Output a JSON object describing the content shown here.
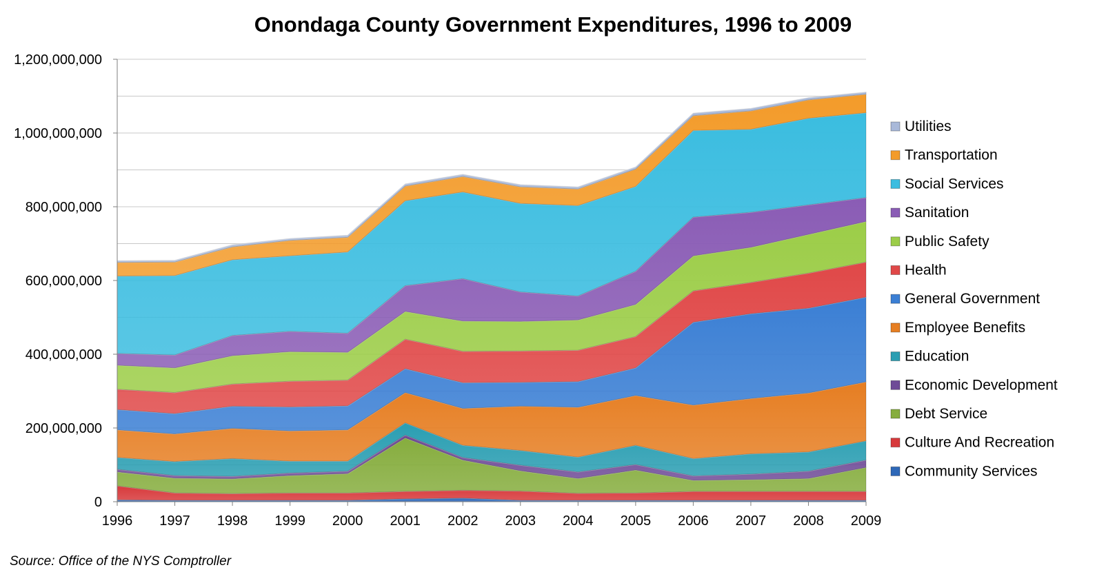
{
  "chart_data": {
    "type": "area",
    "stacked": true,
    "title": "Onondaga County Government Expenditures, 1996 to 2009",
    "source": "Source:  Office of the NYS Comptroller",
    "xlabel": "",
    "ylabel": "",
    "ylim": [
      0,
      1200000000
    ],
    "ytick_step": 200000000,
    "yticks": [
      "0",
      "200,000,000",
      "400,000,000",
      "600,000,000",
      "800,000,000",
      "1,000,000,000",
      "1,200,000,000"
    ],
    "grid": true,
    "legend_position": "right",
    "categories": [
      "1996",
      "1997",
      "1998",
      "1999",
      "2000",
      "2001",
      "2002",
      "2003",
      "2004",
      "2005",
      "2006",
      "2007",
      "2008",
      "2009"
    ],
    "series": [
      {
        "name": "Community Services",
        "color": "#2e68b8",
        "values": [
          5000000,
          4000000,
          4000000,
          4000000,
          4000000,
          8000000,
          10000000,
          4000000,
          4000000,
          4000000,
          4000000,
          4000000,
          4000000,
          4000000
        ]
      },
      {
        "name": "Culture And Recreation",
        "color": "#d7393b",
        "values": [
          38000000,
          20000000,
          18000000,
          20000000,
          20000000,
          20000000,
          21000000,
          25000000,
          19000000,
          20000000,
          24000000,
          24000000,
          24000000,
          24000000
        ]
      },
      {
        "name": "Debt Service",
        "color": "#86ad3e",
        "values": [
          38000000,
          40000000,
          40000000,
          47000000,
          52000000,
          145000000,
          82000000,
          55000000,
          40000000,
          62000000,
          30000000,
          32000000,
          35000000,
          65000000
        ]
      },
      {
        "name": "Economic Development",
        "color": "#6f4b97",
        "values": [
          7000000,
          7000000,
          7000000,
          7000000,
          7000000,
          8000000,
          7000000,
          15000000,
          18000000,
          15000000,
          12000000,
          15000000,
          20000000,
          20000000
        ]
      },
      {
        "name": "Education",
        "color": "#2a9eb2",
        "values": [
          32000000,
          38000000,
          48000000,
          32000000,
          27000000,
          33000000,
          33000000,
          40000000,
          40000000,
          52000000,
          47000000,
          55000000,
          52000000,
          52000000
        ]
      },
      {
        "name": "Employee Benefits",
        "color": "#e67e22",
        "values": [
          75000000,
          75000000,
          82000000,
          82000000,
          85000000,
          82000000,
          100000000,
          120000000,
          135000000,
          135000000,
          145000000,
          150000000,
          160000000,
          160000000
        ]
      },
      {
        "name": "General Government",
        "color": "#3b7fd4",
        "values": [
          55000000,
          55000000,
          60000000,
          65000000,
          65000000,
          65000000,
          70000000,
          65000000,
          70000000,
          75000000,
          225000000,
          230000000,
          230000000,
          230000000
        ]
      },
      {
        "name": "Health",
        "color": "#e04848",
        "values": [
          55000000,
          57000000,
          60000000,
          70000000,
          70000000,
          80000000,
          85000000,
          85000000,
          85000000,
          85000000,
          85000000,
          85000000,
          95000000,
          95000000
        ]
      },
      {
        "name": "Public Safety",
        "color": "#9ccd48",
        "values": [
          65000000,
          67000000,
          77000000,
          80000000,
          75000000,
          75000000,
          82000000,
          80000000,
          82000000,
          87000000,
          95000000,
          95000000,
          105000000,
          110000000
        ]
      },
      {
        "name": "Sanitation",
        "color": "#8a5cb5",
        "values": [
          32000000,
          35000000,
          55000000,
          55000000,
          52000000,
          70000000,
          115000000,
          80000000,
          65000000,
          90000000,
          105000000,
          95000000,
          80000000,
          65000000
        ]
      },
      {
        "name": "Social Services",
        "color": "#3bbde0",
        "values": [
          210000000,
          215000000,
          205000000,
          205000000,
          220000000,
          230000000,
          235000000,
          240000000,
          245000000,
          230000000,
          235000000,
          225000000,
          235000000,
          230000000
        ]
      },
      {
        "name": "Transportation",
        "color": "#f39b2a",
        "values": [
          37000000,
          37000000,
          35000000,
          42000000,
          40000000,
          40000000,
          42000000,
          45000000,
          45000000,
          47000000,
          40000000,
          50000000,
          50000000,
          50000000
        ]
      },
      {
        "name": "Utilities",
        "color": "#a9b9d9",
        "values": [
          5000000,
          5000000,
          6000000,
          5000000,
          6000000,
          6000000,
          6000000,
          6000000,
          6000000,
          6000000,
          7000000,
          7000000,
          6000000,
          6000000
        ]
      }
    ]
  }
}
